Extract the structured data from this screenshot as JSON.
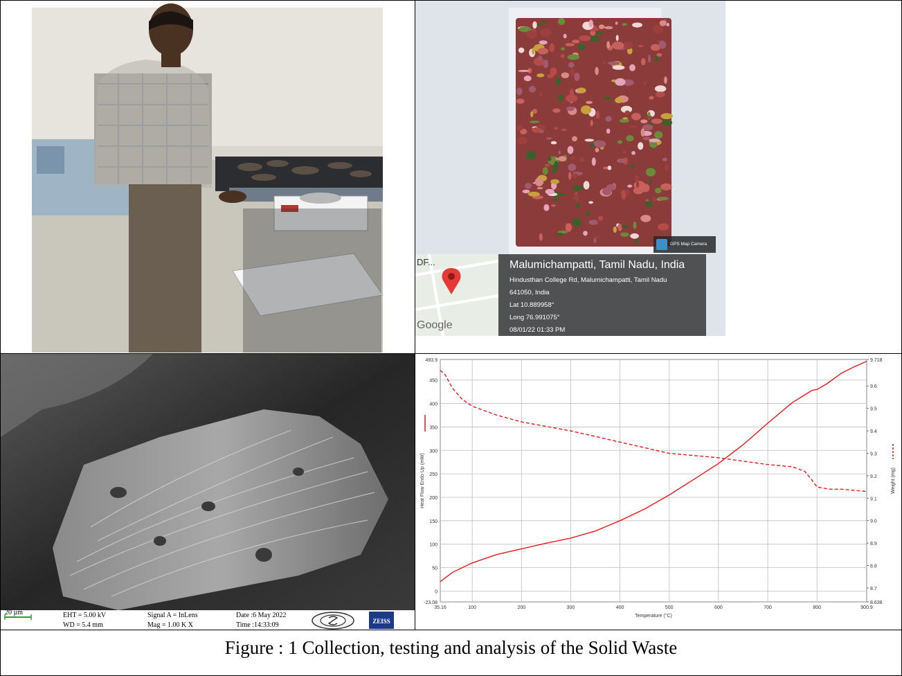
{
  "photo_geotag": {
    "place": "Malumichampatti, Tamil Nadu, India",
    "address_line1": "Hindusthan College Rd, Malumichampatti, Tamil Nadu",
    "address_line2": "641050, India",
    "lat": "Lat 10.889958°",
    "long": "Long 76.991075°",
    "datetime": "08/01/22 01:33 PM",
    "badge": "GPS Map Camera",
    "map_label": "DF...",
    "map_brand": "Google"
  },
  "sem_infobar": {
    "scale": "20 µm",
    "eht": "EHT = 5.00 kV",
    "wd": "WD = 5.4 mm",
    "signal": "Signal A = InLens",
    "mag": "Mag = 1.00 K X",
    "date": "Date :6 May 2022",
    "time": "Time :14:33:09",
    "brand": "ZEISS"
  },
  "chart_data": {
    "type": "line",
    "xlabel": "Temperature (°C)",
    "ylabel_left": "Heat Flow Endo Up (mW)",
    "ylabel_right": "Weight (mg)",
    "xlim": [
      35.16,
      900.9
    ],
    "ylim_left": [
      -23.08,
      493.9
    ],
    "ylim_right": [
      8.638,
      9.718
    ],
    "x_ticks": [
      "35.16",
      "100",
      "200",
      "300",
      "400",
      "500",
      "600",
      "700",
      "800",
      "900.9"
    ],
    "y_left_ticks": [
      "493.9",
      "450",
      "400",
      "350",
      "300",
      "250",
      "200",
      "150",
      "100",
      "50",
      "0",
      "-23.08"
    ],
    "y_right_ticks": [
      "9.718",
      "9.6",
      "9.5",
      "9.4",
      "9.3",
      "9.2",
      "9.1",
      "9.0",
      "8.9",
      "8.8",
      "8.7",
      "8.638"
    ],
    "grid": true,
    "color": "#e8191a",
    "series": [
      {
        "style": "solid",
        "axis": "left",
        "x": [
          35.16,
          60,
          100,
          150,
          200,
          250,
          300,
          350,
          400,
          450,
          500,
          550,
          600,
          650,
          700,
          750,
          790,
          800,
          820,
          850,
          875,
          900.9
        ],
        "y": [
          20,
          40,
          60,
          78,
          90,
          102,
          113,
          128,
          150,
          175,
          205,
          238,
          272,
          312,
          358,
          402,
          428,
          430,
          442,
          465,
          478,
          490
        ]
      },
      {
        "style": "dashed",
        "axis": "right",
        "x": [
          35.16,
          45,
          60,
          80,
          100,
          150,
          200,
          300,
          400,
          500,
          600,
          700,
          750,
          775,
          790,
          800,
          825,
          850,
          900.9
        ],
        "y": [
          9.67,
          9.65,
          9.59,
          9.54,
          9.51,
          9.47,
          9.44,
          9.4,
          9.35,
          9.3,
          9.28,
          9.25,
          9.24,
          9.22,
          9.18,
          9.15,
          9.14,
          9.14,
          9.13
        ]
      }
    ]
  },
  "caption": "Figure : 1 Collection, testing and analysis of the Solid Waste"
}
